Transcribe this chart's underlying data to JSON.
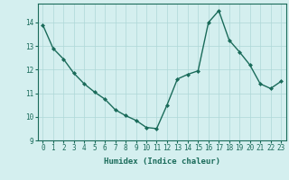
{
  "x": [
    0,
    1,
    2,
    3,
    4,
    5,
    6,
    7,
    8,
    9,
    10,
    11,
    12,
    13,
    14,
    15,
    16,
    17,
    18,
    19,
    20,
    21,
    22,
    23
  ],
  "y": [
    13.9,
    12.9,
    12.45,
    11.85,
    11.4,
    11.05,
    10.75,
    10.3,
    10.05,
    9.85,
    9.55,
    9.5,
    10.5,
    11.6,
    11.8,
    11.95,
    14.0,
    14.5,
    13.25,
    12.75,
    12.2,
    11.4,
    11.2,
    11.5
  ],
  "line_color": "#1a6b5a",
  "marker": "D",
  "markersize": 2,
  "linewidth": 1.0,
  "bg_color": "#d4efef",
  "grid_color": "#aed8d8",
  "xlabel": "Humidex (Indice chaleur)",
  "xlim": [
    -0.5,
    23.5
  ],
  "ylim": [
    9,
    14.8
  ],
  "yticks": [
    9,
    10,
    11,
    12,
    13,
    14
  ],
  "xticks": [
    0,
    1,
    2,
    3,
    4,
    5,
    6,
    7,
    8,
    9,
    10,
    11,
    12,
    13,
    14,
    15,
    16,
    17,
    18,
    19,
    20,
    21,
    22,
    23
  ],
  "xlabel_fontsize": 6.5,
  "tick_fontsize": 5.5,
  "grid_linewidth": 0.5
}
